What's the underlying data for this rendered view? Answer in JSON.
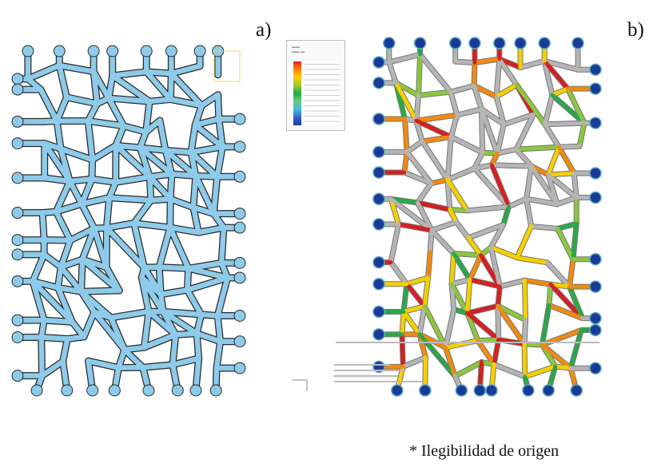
{
  "panels": [
    {
      "label": "a)",
      "description_colors": {
        "fill": "#8ecbea",
        "outline": "#2a2a2a"
      }
    },
    {
      "label": "b)",
      "colors": {
        "base": "#b5b5b5",
        "stress": [
          "#d62020",
          "#f08a10",
          "#f5d000",
          "#8cc63f",
          "#2aa84a",
          "#40b8d8",
          "#1a3a9a"
        ]
      }
    }
  ],
  "legend": {
    "colorbar": [
      "#d22222",
      "#ff8800",
      "#ffcc00",
      "#99cc33",
      "#22aa44",
      "#66cc88",
      "#44bbdd",
      "#3366cc",
      "#1a3a9a"
    ]
  },
  "caption": "* Ilegibilidad de origen"
}
